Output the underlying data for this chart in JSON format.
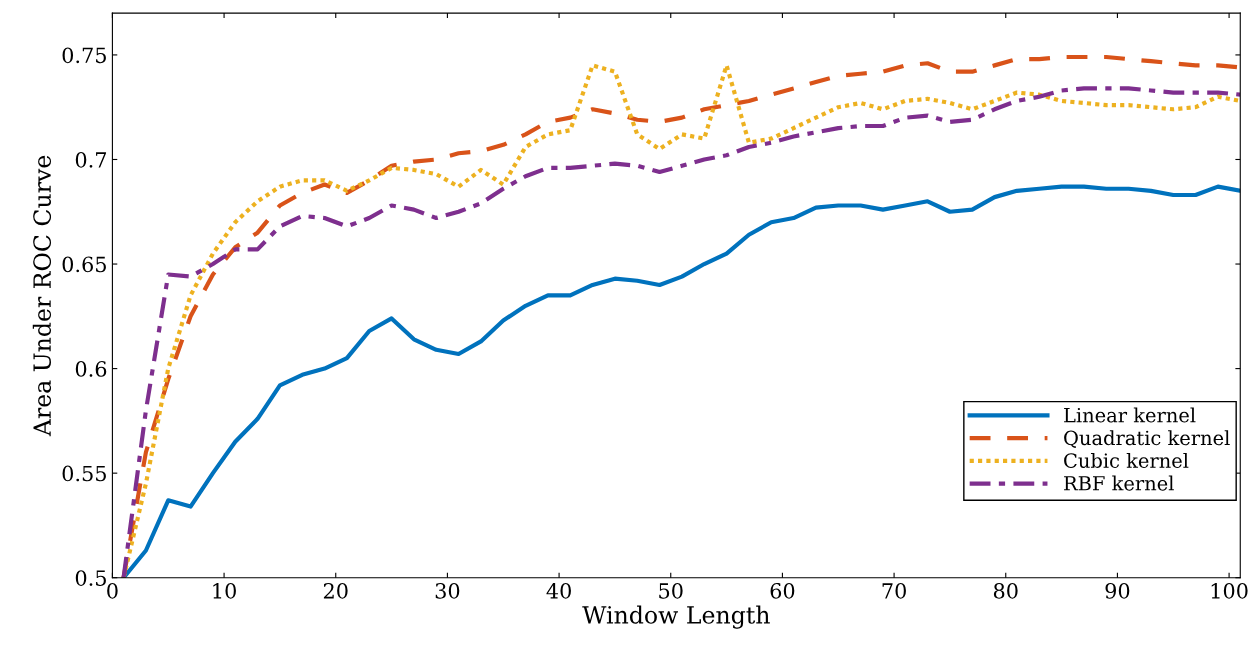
{
  "chart_data": {
    "type": "line",
    "xlabel": "Window Length",
    "ylabel": "Area Under ROC Curve",
    "x": [
      1,
      3,
      5,
      7,
      9,
      11,
      13,
      15,
      17,
      19,
      21,
      23,
      25,
      27,
      29,
      31,
      33,
      35,
      37,
      39,
      41,
      43,
      45,
      47,
      49,
      51,
      53,
      55,
      57,
      59,
      61,
      63,
      65,
      67,
      69,
      71,
      73,
      75,
      77,
      79,
      81,
      83,
      85,
      87,
      89,
      91,
      93,
      95,
      97,
      99,
      101
    ],
    "xlim": [
      0,
      101
    ],
    "ylim": [
      0.5,
      0.77
    ],
    "xticks": [
      0,
      10,
      20,
      30,
      40,
      50,
      60,
      70,
      80,
      90,
      100
    ],
    "yticks": [
      0.5,
      0.55,
      0.6,
      0.65,
      0.7,
      0.75
    ],
    "grid": false,
    "legend": "bottom right",
    "marker": "none",
    "series": [
      {
        "name": "Linear kernel",
        "color": "#0072bd",
        "line_style": "solid",
        "values": [
          0.5,
          0.513,
          0.537,
          0.534,
          0.55,
          0.565,
          0.576,
          0.592,
          0.597,
          0.6,
          0.605,
          0.618,
          0.624,
          0.614,
          0.609,
          0.607,
          0.613,
          0.623,
          0.63,
          0.635,
          0.635,
          0.64,
          0.643,
          0.642,
          0.64,
          0.644,
          0.65,
          0.655,
          0.664,
          0.67,
          0.672,
          0.677,
          0.678,
          0.678,
          0.676,
          0.678,
          0.68,
          0.675,
          0.676,
          0.682,
          0.685,
          0.686,
          0.687,
          0.687,
          0.686,
          0.686,
          0.685,
          0.683,
          0.683,
          0.687,
          0.685
        ]
      },
      {
        "name": "Quadratic kernel",
        "color": "#d95319",
        "line_style": "dashed",
        "values": [
          0.5,
          0.56,
          0.595,
          0.625,
          0.645,
          0.658,
          0.665,
          0.678,
          0.684,
          0.688,
          0.684,
          0.69,
          0.697,
          0.699,
          0.7,
          0.703,
          0.704,
          0.707,
          0.712,
          0.718,
          0.72,
          0.724,
          0.722,
          0.719,
          0.718,
          0.72,
          0.724,
          0.726,
          0.728,
          0.731,
          0.734,
          0.737,
          0.74,
          0.741,
          0.742,
          0.745,
          0.746,
          0.742,
          0.742,
          0.745,
          0.748,
          0.748,
          0.749,
          0.749,
          0.749,
          0.748,
          0.747,
          0.746,
          0.745,
          0.745,
          0.744
        ]
      },
      {
        "name": "Cubic kernel",
        "color": "#edb120",
        "line_style": "dotted",
        "values": [
          0.5,
          0.545,
          0.6,
          0.635,
          0.655,
          0.67,
          0.68,
          0.687,
          0.69,
          0.69,
          0.685,
          0.69,
          0.696,
          0.695,
          0.693,
          0.687,
          0.695,
          0.688,
          0.706,
          0.712,
          0.714,
          0.745,
          0.742,
          0.712,
          0.705,
          0.712,
          0.71,
          0.745,
          0.708,
          0.71,
          0.715,
          0.72,
          0.725,
          0.727,
          0.724,
          0.728,
          0.729,
          0.727,
          0.724,
          0.728,
          0.732,
          0.731,
          0.728,
          0.727,
          0.726,
          0.726,
          0.725,
          0.724,
          0.725,
          0.73,
          0.728
        ]
      },
      {
        "name": "RBF kernel",
        "color": "#7e2f8e",
        "line_style": "dashdot",
        "values": [
          0.5,
          0.58,
          0.645,
          0.644,
          0.65,
          0.657,
          0.657,
          0.668,
          0.673,
          0.672,
          0.668,
          0.672,
          0.678,
          0.676,
          0.672,
          0.675,
          0.679,
          0.686,
          0.692,
          0.696,
          0.696,
          0.697,
          0.698,
          0.697,
          0.694,
          0.697,
          0.7,
          0.702,
          0.706,
          0.708,
          0.711,
          0.713,
          0.715,
          0.716,
          0.716,
          0.72,
          0.721,
          0.718,
          0.719,
          0.724,
          0.728,
          0.73,
          0.733,
          0.734,
          0.734,
          0.734,
          0.733,
          0.732,
          0.732,
          0.732,
          0.731
        ]
      }
    ]
  }
}
